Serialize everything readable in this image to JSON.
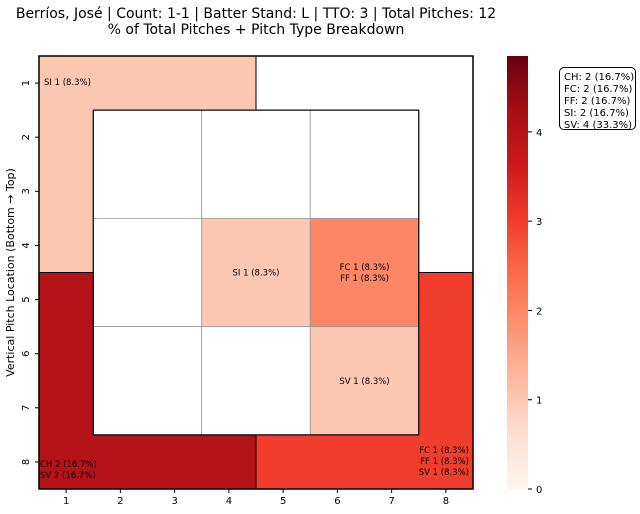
{
  "title_line1": "Berríos, José | Count: 1-1 | Batter Stand: L | TTO: 3 | Total Pitches: 12",
  "title_line2": "% of Total Pitches + Pitch Type Breakdown",
  "legend": [
    "CH: 2 (16.7%)",
    "FC: 2 (16.7%)",
    "FF: 2 (16.7%)",
    "SI: 2 (16.7%)",
    "SV: 4 (33.3%)"
  ],
  "chart_data": {
    "type": "heatmap",
    "title": "Berríos, José | Count: 1-1 | Batter Stand: L | TTO: 3 | Total Pitches: 12\n% of Total Pitches + Pitch Type Breakdown",
    "xlabel": "",
    "ylabel": "Vertical Pitch Location (Bottom → Top)",
    "x_ticks": [
      "1",
      "2",
      "3",
      "4",
      "5",
      "6",
      "7",
      "8"
    ],
    "y_ticks": [
      "1",
      "2",
      "3",
      "4",
      "5",
      "6",
      "7",
      "8"
    ],
    "colormap": "Reds",
    "colorbar": {
      "min": 0,
      "max": 4.85,
      "ticks": [
        0,
        1,
        2,
        3,
        4
      ]
    },
    "zones": [
      {
        "name": "outer-top-left",
        "x_range": [
          0.5,
          4.5
        ],
        "y_range": [
          0.5,
          4.5
        ],
        "count": 1,
        "labels": [
          "SI 1 (8.3%)"
        ],
        "label_anchor": "top-left"
      },
      {
        "name": "outer-top-right",
        "x_range": [
          4.5,
          8.5
        ],
        "y_range": [
          0.5,
          4.5
        ],
        "count": 0,
        "labels": [],
        "label_anchor": "top-right"
      },
      {
        "name": "outer-bottom-left",
        "x_range": [
          0.5,
          4.5
        ],
        "y_range": [
          4.5,
          8.5
        ],
        "count": 4,
        "labels": [
          "CH 2 (16.7%)",
          "SV 2 (16.7%)"
        ],
        "label_anchor": "bottom-left"
      },
      {
        "name": "outer-bottom-right",
        "x_range": [
          4.5,
          8.5
        ],
        "y_range": [
          4.5,
          8.5
        ],
        "count": 3,
        "labels": [
          "FC 1 (8.3%)",
          "FF 1 (8.3%)",
          "SV 1 (8.3%)"
        ],
        "label_anchor": "bottom-right"
      }
    ],
    "inner_x_range": [
      1.5,
      7.5
    ],
    "inner_y_range": [
      1.5,
      7.5
    ],
    "inner_cells": [
      {
        "row": 0,
        "col": 0,
        "count": 0,
        "labels": []
      },
      {
        "row": 0,
        "col": 1,
        "count": 0,
        "labels": []
      },
      {
        "row": 0,
        "col": 2,
        "count": 0,
        "labels": []
      },
      {
        "row": 1,
        "col": 0,
        "count": 0,
        "labels": []
      },
      {
        "row": 1,
        "col": 1,
        "count": 1,
        "labels": [
          "SI 1 (8.3%)"
        ]
      },
      {
        "row": 1,
        "col": 2,
        "count": 2,
        "labels": [
          "FC 1 (8.3%)",
          "FF 1 (8.3%)"
        ]
      },
      {
        "row": 2,
        "col": 0,
        "count": 0,
        "labels": []
      },
      {
        "row": 2,
        "col": 1,
        "count": 0,
        "labels": []
      },
      {
        "row": 2,
        "col": 2,
        "count": 1,
        "labels": [
          "SV 1 (8.3%)"
        ]
      }
    ],
    "pitch_totals": [
      {
        "type": "CH",
        "count": 2,
        "pct": 16.7
      },
      {
        "type": "FC",
        "count": 2,
        "pct": 16.7
      },
      {
        "type": "FF",
        "count": 2,
        "pct": 16.7
      },
      {
        "type": "SI",
        "count": 2,
        "pct": 16.7
      },
      {
        "type": "SV",
        "count": 4,
        "pct": 33.3
      }
    ],
    "total_pitches": 12
  }
}
